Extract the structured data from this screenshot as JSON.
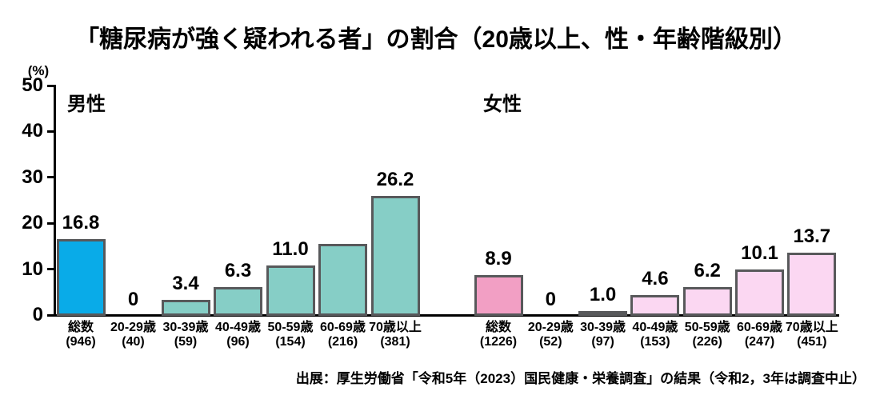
{
  "page": {
    "title": "「糖尿病が強く疑われる者」の割合（20歳以上、性・年齢階級別）",
    "source": "出展：厚生労働省「令和5年（2023）国民健康・栄養調査」の結果（令和2，3年は調査中止）"
  },
  "y_axis": {
    "unit": "(%)",
    "ticks": [
      0,
      10,
      20,
      30,
      40,
      50
    ],
    "min": 0,
    "max": 50
  },
  "colors": {
    "male_total_bar": "#09abe8",
    "male_age_bar": "#86cec6",
    "female_total_bar": "#f29fc4",
    "female_age_bar": "#fbd7f2",
    "bar_border": "#58595b",
    "axis": "#000000",
    "text": "#000000",
    "background": "#ffffff"
  },
  "chart_data": {
    "type": "bar",
    "title": "「糖尿病が強く疑われる者」の割合（20歳以上、性・年齢階級別）",
    "ylabel": "(%)",
    "ylim": [
      0,
      50
    ],
    "grid": false,
    "legend": "none",
    "categories": [
      "総数",
      "20-29歳",
      "30-39歳",
      "40-49歳",
      "50-59歳",
      "60-69歳",
      "70歳以上"
    ],
    "groups": [
      {
        "name": "男性",
        "categories": [
          "総数",
          "20-29歳",
          "30-39歳",
          "40-49歳",
          "50-59歳",
          "60-69歳",
          "70歳以上"
        ],
        "sample_sizes": [
          "(946)",
          "(40)",
          "(59)",
          "(96)",
          "(154)",
          "(216)",
          "(381)"
        ],
        "values": [
          16.8,
          0,
          3.4,
          6.3,
          11.0,
          15.6,
          26.2
        ],
        "value_labels": [
          "16.8",
          "0",
          "3.4",
          "6.3",
          "11.0",
          "",
          "26.2"
        ],
        "note": "60-69歳 bar is drawn without a printed value label; height ≈15.6 read from axis"
      },
      {
        "name": "女性",
        "categories": [
          "総数",
          "20-29歳",
          "30-39歳",
          "40-49歳",
          "50-59歳",
          "60-69歳",
          "70歳以上"
        ],
        "sample_sizes": [
          "(1226)",
          "(52)",
          "(97)",
          "(153)",
          "(226)",
          "(247)",
          "(451)"
        ],
        "values": [
          8.9,
          0,
          1.0,
          4.6,
          6.2,
          10.1,
          13.7
        ],
        "value_labels": [
          "8.9",
          "0",
          "1.0",
          "4.6",
          "6.2",
          "10.1",
          "13.7"
        ]
      }
    ]
  }
}
